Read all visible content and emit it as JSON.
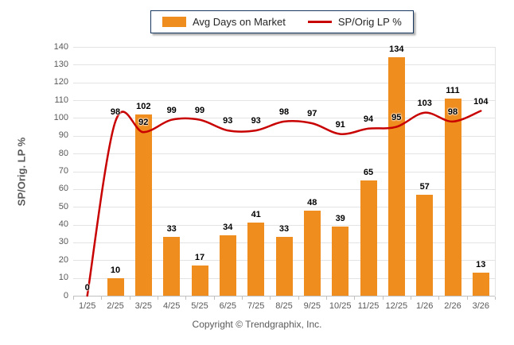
{
  "chart_data": {
    "type": "bar",
    "categories": [
      "1/25",
      "2/25",
      "3/25",
      "4/25",
      "5/25",
      "6/25",
      "7/25",
      "8/25",
      "9/25",
      "10/25",
      "11/25",
      "12/25",
      "1/26",
      "2/26",
      "3/26"
    ],
    "series": [
      {
        "name": "Avg Days on Market",
        "type": "bar",
        "values": [
          0,
          10,
          102,
          33,
          17,
          34,
          41,
          33,
          48,
          39,
          65,
          134,
          57,
          111,
          13
        ]
      },
      {
        "name": "SP/Orig LP %",
        "type": "line",
        "values": [
          0,
          98,
          92,
          99,
          99,
          93,
          93,
          98,
          97,
          91,
          94,
          95,
          103,
          98,
          104
        ]
      }
    ],
    "title": "",
    "xlabel": "",
    "ylabel": "SP/Orig. LP %",
    "ylim": [
      0,
      140
    ],
    "ytick_step": 10,
    "grid": true,
    "legend_position": "top-center",
    "data_labels": true
  },
  "colors": {
    "bar": "#EF8D1E",
    "line": "#C80000",
    "grid": "#E3E3E3",
    "axis": "#C0C0C0",
    "legend_border": "#17375E"
  },
  "footer": {
    "copyright": "Copyright © Trendgraphix, Inc."
  }
}
